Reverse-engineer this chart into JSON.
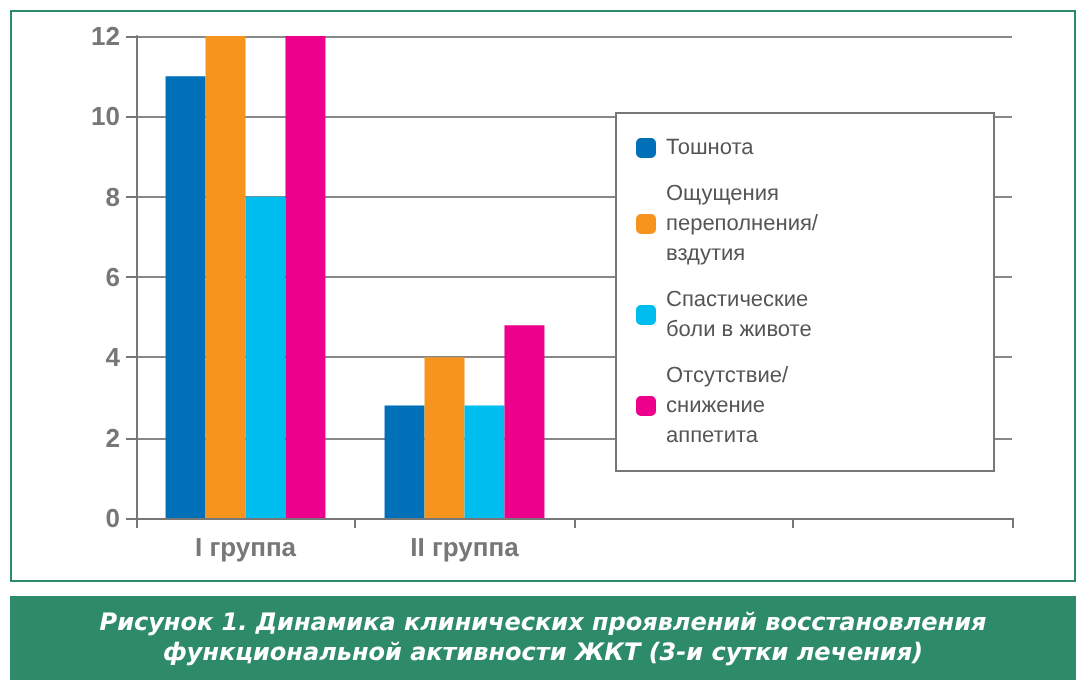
{
  "chart_data": {
    "type": "bar",
    "title": "Рисунок 1. Динамика клинических проявлений восстановления функциональной активности ЖКТ (3-и сутки лечения)",
    "categories": [
      "I группа",
      "II группа",
      null,
      null
    ],
    "series": [
      {
        "name": "Тошнота",
        "color": "#0070b8",
        "values": [
          11,
          2.8,
          null,
          null
        ]
      },
      {
        "name": "Ощущения переполнения/ вздутия",
        "color": "#f7941d",
        "values": [
          12,
          4,
          null,
          null
        ]
      },
      {
        "name": "Спастические боли в животе",
        "color": "#00bdf0",
        "values": [
          8,
          2.8,
          null,
          null
        ]
      },
      {
        "name": "Отсутствие/снижение аппетита",
        "color": "#ec008c",
        "values": [
          12,
          4.8,
          null,
          null
        ]
      }
    ],
    "ylim": [
      0,
      12
    ],
    "yticks": [
      0,
      2,
      4,
      6,
      8,
      10,
      12
    ],
    "grid": "y",
    "legend": "right"
  }
}
